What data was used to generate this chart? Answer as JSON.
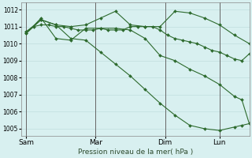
{
  "xlabel": "Pression niveau de la mer( hPa )",
  "background_color": "#d8f0f0",
  "grid_color": "#b8d8d8",
  "line_color": "#2d6a2d",
  "ylim": [
    1004.6,
    1012.4
  ],
  "yticks": [
    1005,
    1006,
    1007,
    1008,
    1009,
    1010,
    1011,
    1012
  ],
  "xtick_labels": [
    "Sam",
    "Mar",
    "Dim",
    "Lun"
  ],
  "xtick_positions": [
    0,
    28,
    56,
    78
  ],
  "vline_positions": [
    0,
    28,
    56,
    78
  ],
  "xlim": [
    -2,
    90
  ],
  "series": [
    {
      "x": [
        0,
        3,
        6,
        9,
        12,
        15,
        18,
        21,
        24,
        27,
        30,
        33,
        36,
        39,
        42,
        45,
        48,
        51,
        54,
        57,
        60,
        63,
        66,
        69,
        72,
        75,
        78,
        81,
        84,
        87,
        90
      ],
      "y": [
        1010.7,
        1011.0,
        1011.1,
        1011.1,
        1011.0,
        1011.0,
        1010.9,
        1010.8,
        1010.8,
        1010.8,
        1010.9,
        1010.8,
        1010.8,
        1010.8,
        1011.0,
        1011.0,
        1011.0,
        1011.0,
        1010.8,
        1010.5,
        1010.3,
        1010.2,
        1010.1,
        1010.0,
        1009.8,
        1009.6,
        1009.5,
        1009.3,
        1009.1,
        1009.0,
        1009.4
      ]
    },
    {
      "x": [
        0,
        6,
        12,
        18,
        24,
        30,
        36,
        42,
        48,
        54,
        60,
        66,
        72,
        78,
        84,
        90
      ],
      "y": [
        1010.7,
        1011.4,
        1011.1,
        1011.0,
        1011.1,
        1011.5,
        1011.9,
        1011.1,
        1011.0,
        1011.0,
        1011.9,
        1011.8,
        1011.5,
        1011.1,
        1010.5,
        1010.0
      ]
    },
    {
      "x": [
        0,
        6,
        12,
        18,
        24,
        30,
        36,
        42,
        48,
        54,
        60,
        66,
        72,
        78,
        84,
        87,
        90
      ],
      "y": [
        1010.6,
        1011.5,
        1010.3,
        1010.2,
        1010.9,
        1010.9,
        1010.9,
        1010.8,
        1010.3,
        1009.3,
        1009.0,
        1008.5,
        1008.1,
        1007.6,
        1006.9,
        1006.7,
        1005.3
      ]
    },
    {
      "x": [
        0,
        6,
        12,
        18,
        24,
        30,
        36,
        42,
        48,
        54,
        60,
        66,
        72,
        78,
        84,
        87,
        90
      ],
      "y": [
        1010.6,
        1011.4,
        1011.1,
        1010.3,
        1010.2,
        1009.5,
        1008.8,
        1008.1,
        1007.3,
        1006.5,
        1005.8,
        1005.2,
        1005.0,
        1004.9,
        1005.1,
        1005.2,
        1005.3
      ]
    }
  ]
}
